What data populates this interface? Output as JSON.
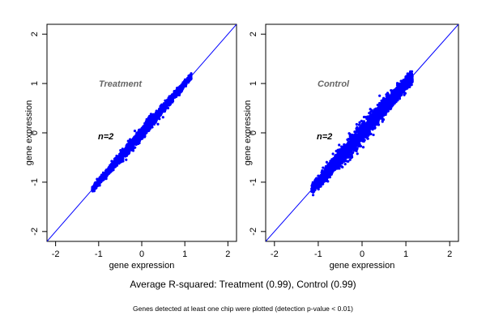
{
  "figure": {
    "caption": "Average R-squared: Treatment (0.99), Control (0.99)",
    "footnote": "Genes detected at least one chip were plotted (detection p-value < 0.01)",
    "point_color": "#0000ff",
    "line_color": "#0000ff"
  },
  "chart_data": [
    {
      "type": "scatter",
      "title": "Treatment",
      "annotation": "n=2",
      "xlabel": "gene expression",
      "ylabel": "gene expression",
      "xlim": [
        -2.2,
        2.2
      ],
      "ylim": [
        -2.2,
        2.2
      ],
      "xticks": [
        -2,
        -1,
        0,
        1,
        2
      ],
      "yticks": [
        -2,
        -1,
        0,
        1,
        2
      ],
      "reference_line": "y = x",
      "r_squared": 0.99,
      "x_range": [
        -1.15,
        1.15
      ],
      "grid": false,
      "points": [
        [
          -1.1,
          -1.12
        ],
        [
          -1.02,
          -1.0
        ],
        [
          -0.95,
          -0.93
        ],
        [
          -0.85,
          -0.88
        ],
        [
          -0.8,
          -0.76
        ],
        [
          -0.72,
          -0.7
        ],
        [
          -0.65,
          -0.67
        ],
        [
          -0.6,
          -0.56
        ],
        [
          -0.55,
          -0.58
        ],
        [
          -0.5,
          -0.47
        ],
        [
          -0.45,
          -0.47
        ],
        [
          -0.4,
          -0.38
        ],
        [
          -0.35,
          -0.37
        ],
        [
          -0.3,
          -0.27
        ],
        [
          -0.25,
          -0.27
        ],
        [
          -0.2,
          -0.18
        ],
        [
          -0.15,
          -0.16
        ],
        [
          -0.1,
          -0.08
        ],
        [
          -0.05,
          -0.06
        ],
        [
          0.0,
          0.02
        ],
        [
          0.05,
          0.03
        ],
        [
          0.1,
          0.12
        ],
        [
          0.15,
          0.13
        ],
        [
          0.2,
          0.22
        ],
        [
          0.25,
          0.23
        ],
        [
          0.3,
          0.32
        ],
        [
          0.35,
          0.33
        ],
        [
          0.4,
          0.42
        ],
        [
          0.45,
          0.44
        ],
        [
          0.5,
          0.52
        ],
        [
          0.55,
          0.54
        ],
        [
          0.6,
          0.62
        ],
        [
          0.65,
          0.64
        ],
        [
          0.7,
          0.72
        ],
        [
          0.75,
          0.74
        ],
        [
          0.8,
          0.82
        ],
        [
          0.85,
          0.84
        ],
        [
          0.9,
          0.92
        ],
        [
          0.95,
          0.95
        ],
        [
          1.02,
          1.03
        ],
        [
          1.1,
          1.12
        ]
      ]
    },
    {
      "type": "scatter",
      "title": "Control",
      "annotation": "n=2",
      "xlabel": "gene expression",
      "ylabel": "gene expression",
      "xlim": [
        -2.2,
        2.2
      ],
      "ylim": [
        -2.2,
        2.2
      ],
      "xticks": [
        -2,
        -1,
        0,
        1,
        2
      ],
      "yticks": [
        -2,
        -1,
        0,
        1,
        2
      ],
      "reference_line": "y = x",
      "r_squared": 0.99,
      "x_range": [
        -1.15,
        1.15
      ],
      "grid": false,
      "points": [
        [
          -1.1,
          -1.1
        ],
        [
          -1.05,
          -0.95
        ],
        [
          -0.95,
          -1.05
        ],
        [
          -0.9,
          -0.8
        ],
        [
          -0.85,
          -0.95
        ],
        [
          -0.75,
          -0.65
        ],
        [
          -0.7,
          -0.82
        ],
        [
          -0.65,
          -0.55
        ],
        [
          -0.6,
          -0.72
        ],
        [
          -0.55,
          -0.45
        ],
        [
          -0.5,
          -0.62
        ],
        [
          -0.45,
          -0.35
        ],
        [
          -0.4,
          -0.52
        ],
        [
          -0.35,
          -0.25
        ],
        [
          -0.3,
          -0.42
        ],
        [
          -0.25,
          -0.15
        ],
        [
          -0.2,
          -0.3
        ],
        [
          -0.15,
          -0.05
        ],
        [
          -0.1,
          -0.2
        ],
        [
          -0.05,
          0.05
        ],
        [
          0.0,
          -0.1
        ],
        [
          0.05,
          0.15
        ],
        [
          0.1,
          0.0
        ],
        [
          0.15,
          0.25
        ],
        [
          0.2,
          0.1
        ],
        [
          0.25,
          0.35
        ],
        [
          0.3,
          0.2
        ],
        [
          0.35,
          0.45
        ],
        [
          0.4,
          0.3
        ],
        [
          0.45,
          0.55
        ],
        [
          0.5,
          0.42
        ],
        [
          0.55,
          0.62
        ],
        [
          0.6,
          0.52
        ],
        [
          0.65,
          0.72
        ],
        [
          0.7,
          0.62
        ],
        [
          0.75,
          0.8
        ],
        [
          0.8,
          0.72
        ],
        [
          0.85,
          0.88
        ],
        [
          0.9,
          0.82
        ],
        [
          1.0,
          1.0
        ],
        [
          1.1,
          1.12
        ]
      ]
    }
  ]
}
